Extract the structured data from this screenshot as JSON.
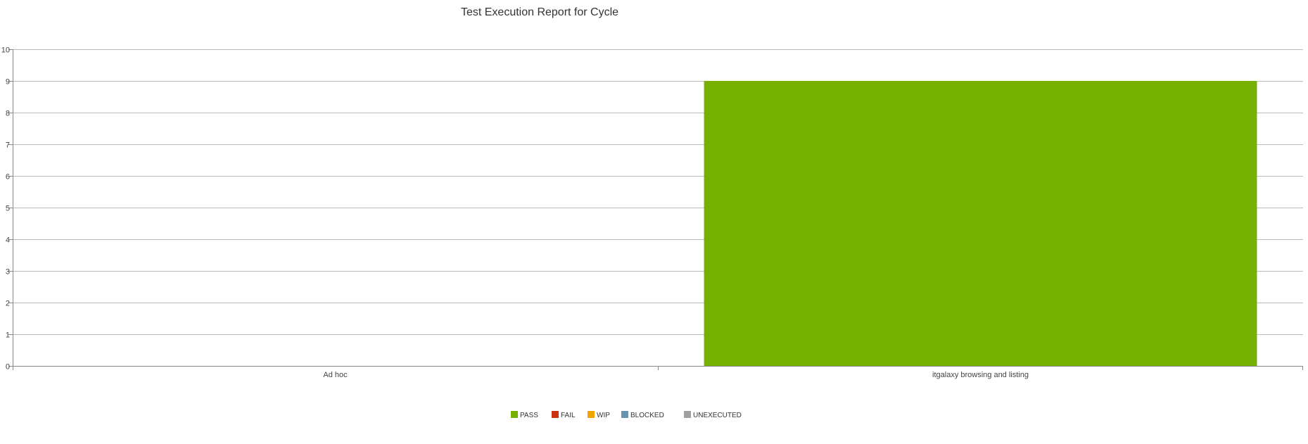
{
  "chart_data": {
    "type": "bar",
    "title": "Test Execution Report for Cycle",
    "xlabel": "",
    "ylabel": "",
    "categories": [
      "Ad hoc",
      "itgalaxy browsing and listing"
    ],
    "series": [
      {
        "name": "PASS",
        "color": "#76b000",
        "values": [
          0,
          9
        ]
      },
      {
        "name": "FAIL",
        "color": "#cc3311",
        "values": [
          0,
          0
        ]
      },
      {
        "name": "WIP",
        "color": "#f0a500",
        "values": [
          0,
          0
        ]
      },
      {
        "name": "BLOCKED",
        "color": "#6693b0",
        "values": [
          0,
          0
        ]
      },
      {
        "name": "UNEXECUTED",
        "color": "#a0a0a0",
        "values": [
          0,
          0
        ]
      }
    ],
    "stacked": true,
    "ylim": [
      0,
      10
    ],
    "yticks": [
      0,
      1,
      2,
      3,
      4,
      5,
      6,
      7,
      8,
      9,
      10
    ],
    "grid": true,
    "legend_position": "bottom-center"
  }
}
